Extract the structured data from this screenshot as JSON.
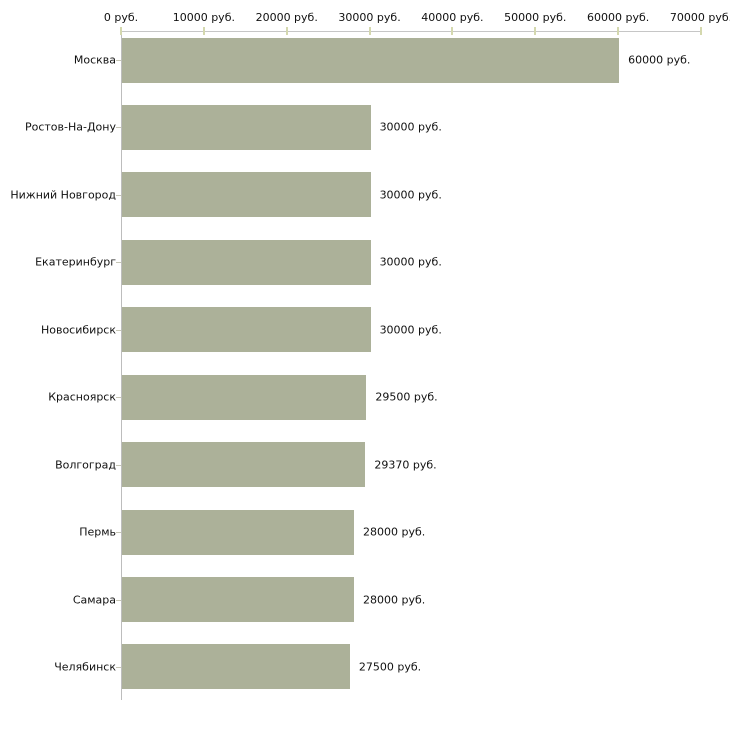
{
  "chart_data": {
    "type": "bar",
    "orientation": "horizontal",
    "title": "",
    "xlabel": "",
    "ylabel": "",
    "grid": false,
    "legend": null,
    "xlim": [
      0,
      70000
    ],
    "categories": [
      "Москва",
      "Ростов-На-Дону",
      "Нижний Новгород",
      "Екатеринбург",
      "Новосибирск",
      "Красноярск",
      "Волгоград",
      "Пермь",
      "Самара",
      "Челябинск"
    ],
    "values": [
      60000,
      30000,
      30000,
      30000,
      30000,
      29500,
      29370,
      28000,
      28000,
      27500
    ],
    "value_labels": [
      "60000 руб.",
      "30000 руб.",
      "30000 руб.",
      "30000 руб.",
      "30000 руб.",
      "29500 руб.",
      "29370 руб.",
      "28000 руб.",
      "28000 руб.",
      "27500 руб."
    ],
    "x_ticks": {
      "values": [
        0,
        10000,
        20000,
        30000,
        40000,
        50000,
        60000,
        70000
      ],
      "labels": [
        "0 руб.",
        "10000 руб.",
        "20000 руб.",
        "30000 руб.",
        "40000 руб.",
        "50000 руб.",
        "60000 руб.",
        "70000 руб."
      ]
    },
    "colors": {
      "bar": "#acb199",
      "axis_line": "#c6c6c6",
      "x_tick": "#d4d8ae",
      "y_tick": "#c6c6b6",
      "text": "#111111",
      "background": "#ffffff"
    }
  }
}
